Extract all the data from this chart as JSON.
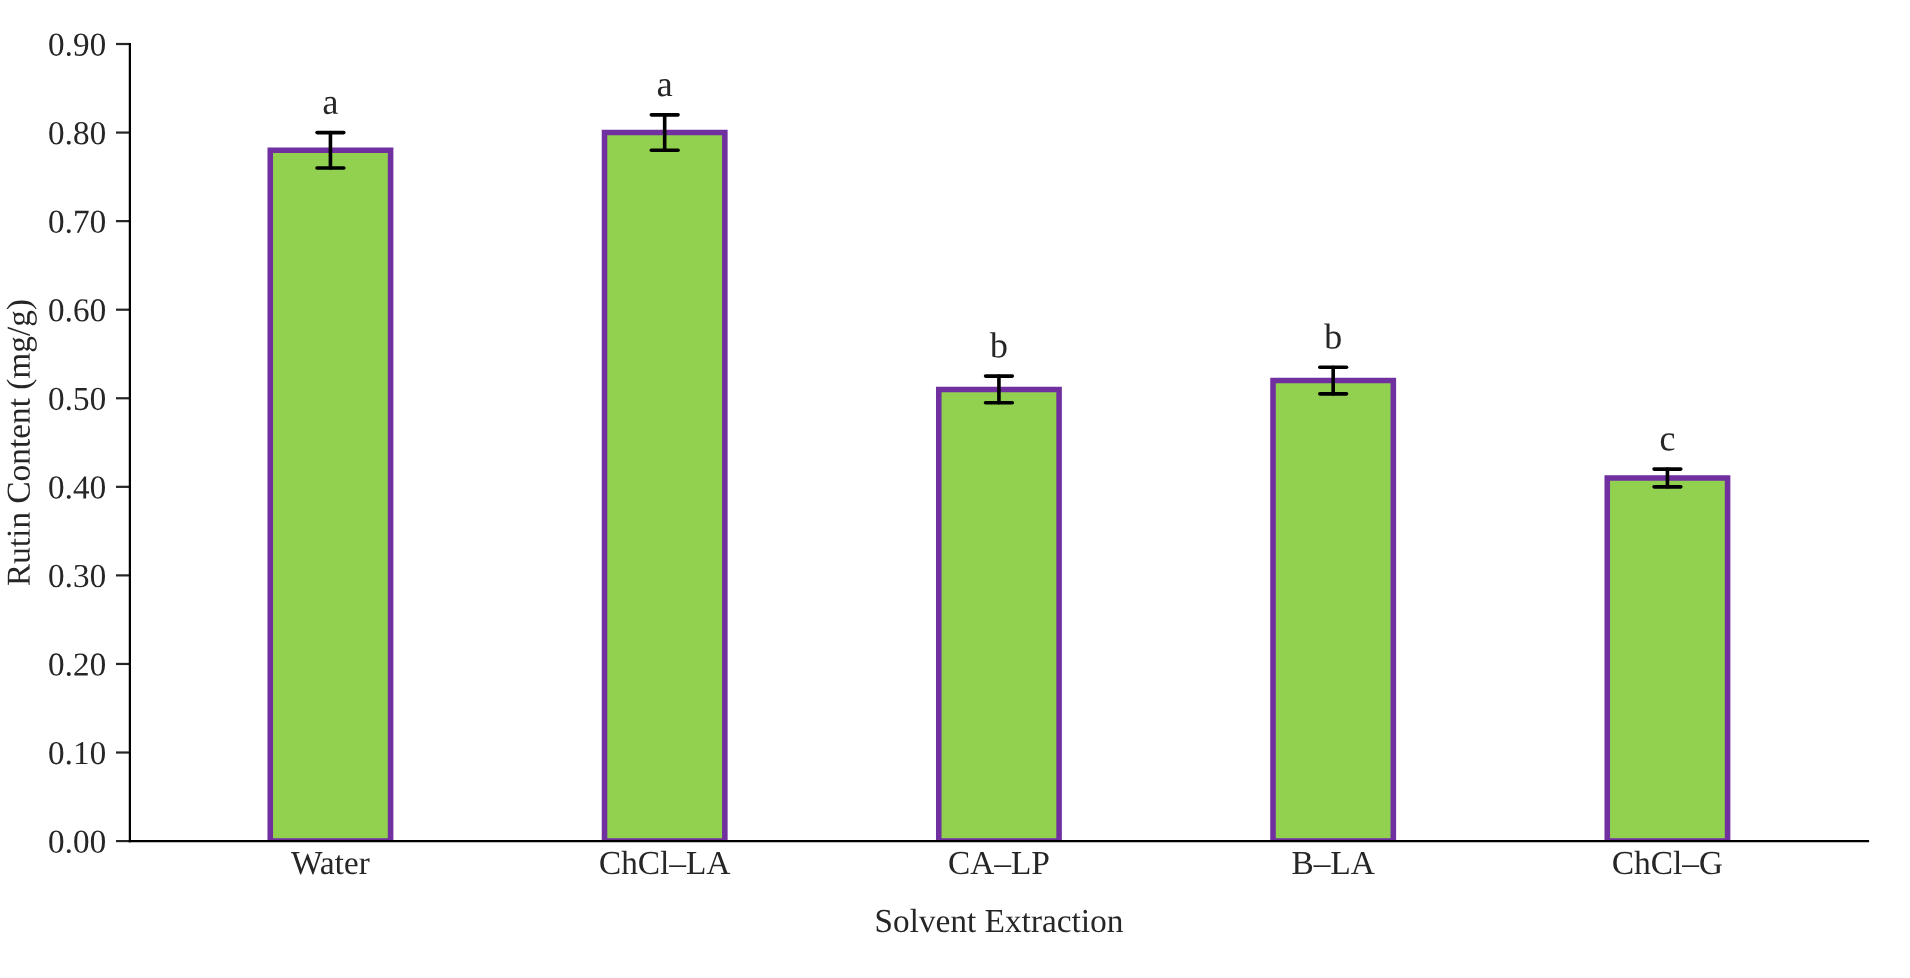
{
  "chart_data": {
    "type": "bar",
    "xlabel": "Solvent Extraction",
    "ylabel": "Rutin Content (mg/g)",
    "categories": [
      "Water",
      "ChCl–LA",
      "CA–LP",
      "B–LA",
      "ChCl–G"
    ],
    "series": [
      {
        "color": "#92d050",
        "values": [
          0.78,
          0.8,
          0.51,
          0.52,
          0.41
        ],
        "errors": [
          0.02,
          0.02,
          0.015,
          0.015,
          0.01
        ]
      }
    ],
    "ylim": [
      0,
      0.9
    ],
    "yticks": [
      {
        "value": 0,
        "label": "0.00"
      },
      {
        "value": 0.1,
        "label": "0.10"
      },
      {
        "value": 0.2,
        "label": "0.20"
      },
      {
        "value": 0.3,
        "label": "0.30"
      },
      {
        "value": 0.4,
        "label": "0.40"
      },
      {
        "value": 0.5,
        "label": "0.50"
      },
      {
        "value": 0.6,
        "label": "0.60"
      },
      {
        "value": 0.7,
        "label": "0.70"
      },
      {
        "value": 0.8,
        "label": "0.80"
      },
      {
        "value": 0.9,
        "label": "0.90"
      }
    ],
    "annotations": [
      {
        "text": "a",
        "x": "Water",
        "y": 0.78
      },
      {
        "text": "a",
        "x": "ChCl–LA",
        "y": 0.8
      },
      {
        "text": "b",
        "x": "CA–LP",
        "y": 0.51
      },
      {
        "text": "b",
        "x": "B–LA",
        "y": 0.52
      },
      {
        "text": "c",
        "x": "ChCl–G",
        "y": 0.41
      }
    ],
    "grid": false,
    "legend": false
  }
}
